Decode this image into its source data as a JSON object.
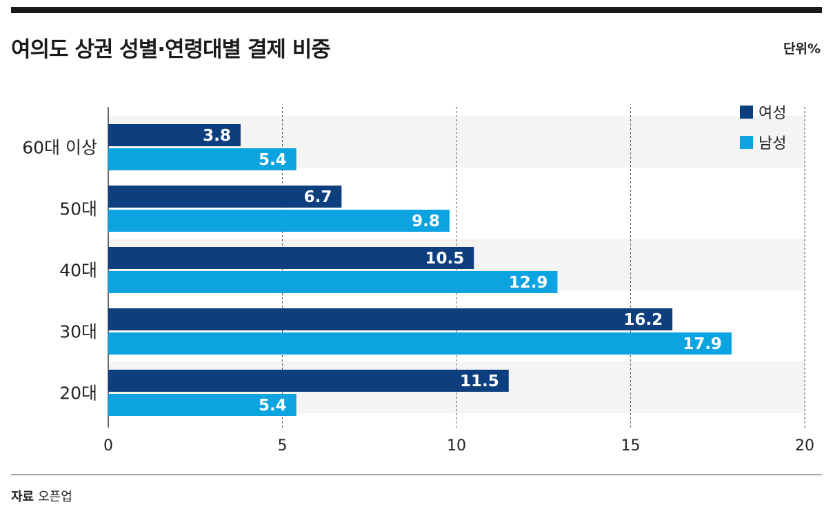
{
  "header": {
    "title": "여의도 상권 성별·연령대별 결제 비중",
    "unit": "단위%"
  },
  "footer": {
    "source_label": "자료",
    "source_value": "오픈업"
  },
  "chart_data": {
    "type": "bar",
    "orientation": "horizontal",
    "title": "여의도 상권 성별·연령대별 결제 비중",
    "unit": "%",
    "categories": [
      "60대 이상",
      "50대",
      "40대",
      "30대",
      "20대"
    ],
    "series": [
      {
        "name": "여성",
        "color": "#0d3f7e",
        "values": [
          3.8,
          6.7,
          10.5,
          16.2,
          11.5
        ],
        "labels": [
          "3.8",
          "6.7",
          "10.5",
          "16.2",
          "11.5"
        ]
      },
      {
        "name": "남성",
        "color": "#0ba3e0",
        "values": [
          5.4,
          9.8,
          12.9,
          17.9,
          5.4
        ],
        "labels": [
          "5.4",
          "9.8",
          "12.9",
          "17.9",
          "5.4"
        ]
      }
    ],
    "xlim": [
      0,
      20
    ],
    "xticks": [
      0,
      5,
      10,
      15,
      20
    ],
    "xtick_labels": [
      "0",
      "5",
      "10",
      "15",
      "20"
    ],
    "grid": "dashed vertical",
    "legend": "top-right"
  }
}
